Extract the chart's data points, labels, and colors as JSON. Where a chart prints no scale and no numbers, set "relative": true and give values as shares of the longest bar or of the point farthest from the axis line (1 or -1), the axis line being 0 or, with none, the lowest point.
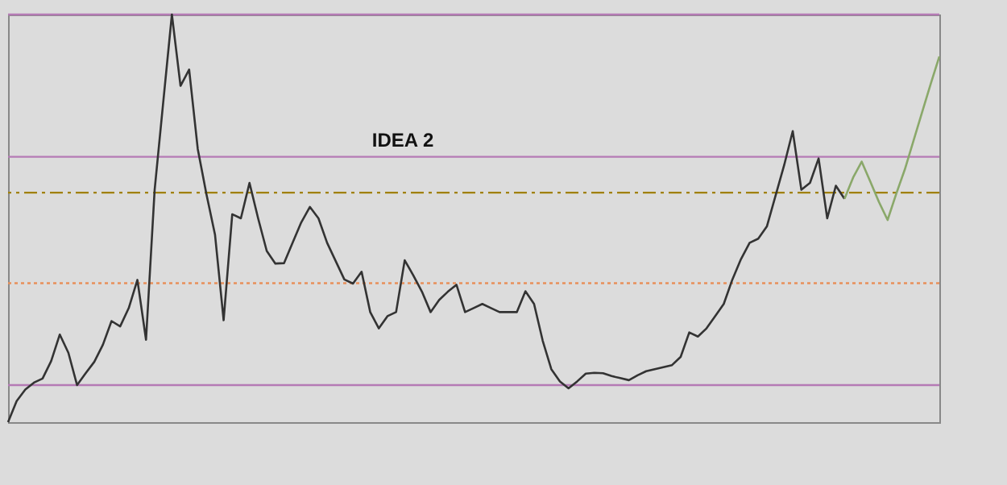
{
  "chart_data": {
    "type": "line",
    "relative": true,
    "categories": [
      null,
      null,
      null,
      null,
      null,
      null,
      null,
      null,
      null,
      null,
      null,
      null,
      null,
      null,
      null,
      null,
      null,
      null,
      null,
      null,
      null,
      null,
      null,
      null,
      null,
      null,
      null,
      null,
      null,
      null,
      null,
      null,
      null,
      null,
      null,
      null,
      null,
      null,
      null,
      null,
      null,
      null,
      null,
      null,
      null,
      null,
      null,
      null,
      null,
      null,
      null,
      null,
      null,
      null,
      null,
      null,
      null,
      null,
      null,
      null,
      null,
      null,
      null,
      null,
      null,
      null,
      null,
      null,
      null,
      null,
      null,
      null,
      null,
      null,
      null,
      null,
      null,
      null,
      null,
      null,
      null,
      null,
      null,
      null,
      null,
      null,
      null,
      null,
      null,
      null,
      null,
      null,
      null,
      null,
      null,
      null,
      null,
      null,
      null,
      null,
      null,
      null,
      null,
      null,
      null,
      null,
      null,
      null,
      null
    ],
    "annotations": [
      "IDEA 2"
    ],
    "series": [
      {
        "color": "#333333",
        "values": [
          0,
          0.052,
          0.08,
          0.097,
          0.107,
          0.15,
          0.215,
          0.17,
          0.091,
          0.12,
          0.148,
          0.19,
          0.248,
          0.235,
          0.28,
          0.349,
          0.202,
          0.57,
          0.786,
          1,
          0.825,
          0.865,
          0.67,
          0.56,
          0.46,
          0.25,
          0.51,
          0.5,
          0.587,
          0.5,
          0.42,
          0.389,
          0.39,
          0.44,
          0.49,
          0.528,
          0.5,
          0.44,
          0.395,
          0.35,
          0.34,
          0.369,
          0.27,
          0.23,
          0.26,
          0.27,
          0.397,
          0.36,
          0.32,
          0.27,
          0.3,
          0.32,
          0.337,
          0.27,
          0.28,
          0.29,
          0.28,
          0.27,
          0.27,
          0.27,
          0.321,
          0.29,
          0.2,
          0.13,
          0.1,
          0.083,
          0.1,
          0.119,
          0.121,
          0.12,
          0.113,
          0.108,
          0.103,
          0.115,
          0.125,
          0.13,
          0.135,
          0.14,
          0.16,
          0.22,
          0.21,
          0.23,
          0.26,
          0.29,
          0.35,
          0.4,
          0.44,
          0.45,
          0.48,
          0.555,
          0.63,
          0.714,
          0.57,
          0.587,
          0.647,
          0.5,
          0.58,
          0.548,
          null,
          null,
          null,
          null,
          null,
          null,
          null,
          null,
          null,
          null,
          null
        ]
      },
      {
        "color": "#8aa86a",
        "values": [
          null,
          null,
          null,
          null,
          null,
          null,
          null,
          null,
          null,
          null,
          null,
          null,
          null,
          null,
          null,
          null,
          null,
          null,
          null,
          null,
          null,
          null,
          null,
          null,
          null,
          null,
          null,
          null,
          null,
          null,
          null,
          null,
          null,
          null,
          null,
          null,
          null,
          null,
          null,
          null,
          null,
          null,
          null,
          null,
          null,
          null,
          null,
          null,
          null,
          null,
          null,
          null,
          null,
          null,
          null,
          null,
          null,
          null,
          null,
          null,
          null,
          null,
          null,
          null,
          null,
          null,
          null,
          null,
          null,
          null,
          null,
          null,
          null,
          null,
          null,
          null,
          null,
          null,
          null,
          null,
          null,
          null,
          null,
          null,
          null,
          null,
          null,
          null,
          null,
          null,
          null,
          null,
          null,
          null,
          null,
          null,
          null,
          0.548,
          0.6,
          0.639,
          0.59,
          0.54,
          0.496,
          0.56,
          0.62,
          0.69,
          0.76,
          0.83,
          0.897
        ]
      }
    ],
    "ref_lines": [
      {
        "axis": "y",
        "value": 1,
        "color": "#b57ab5",
        "line_style": "solid"
      },
      {
        "axis": "y",
        "value": 0.651,
        "color": "#b57ab5",
        "line_style": "solid"
      },
      {
        "axis": "y",
        "value": 0.563,
        "color": "#a08000",
        "line_style": "dashed"
      },
      {
        "axis": "y",
        "value": 0.341,
        "color": "#e8905a",
        "line_style": "dotted"
      },
      {
        "axis": "y",
        "value": 0.091,
        "color": "#b57ab5",
        "line_style": "solid"
      }
    ]
  }
}
